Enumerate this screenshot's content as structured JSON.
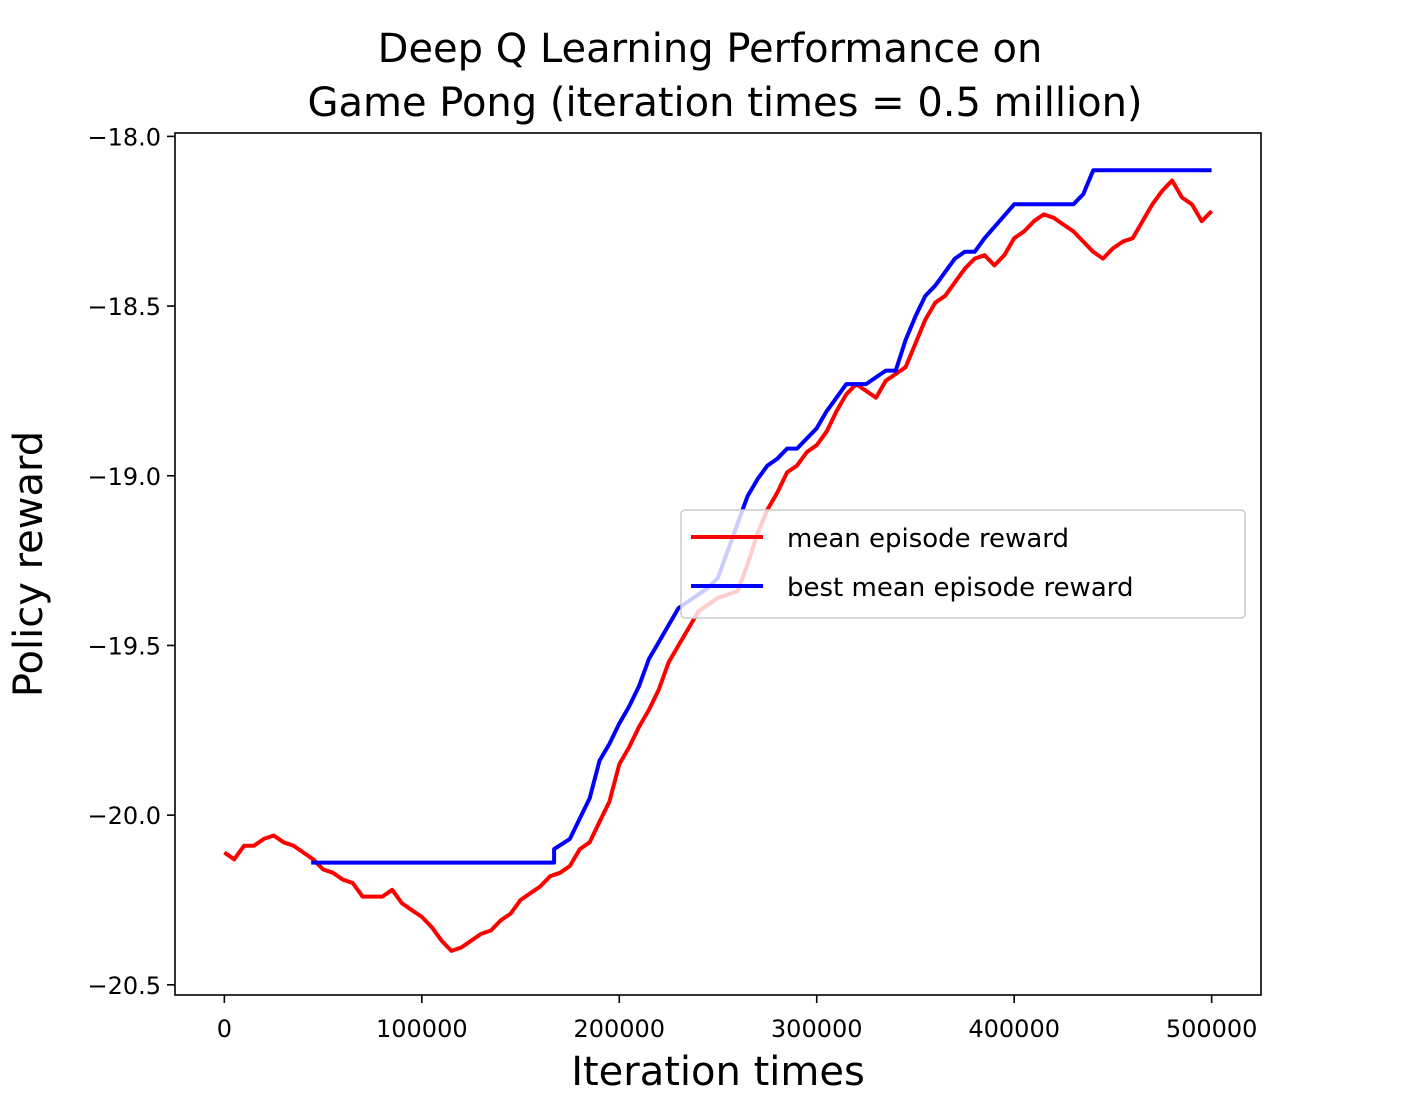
{
  "chart_data": {
    "type": "line",
    "title": "Deep Q Learning Performance on\nGame Pong (iteration times = 0.5 million)",
    "xlabel": "Iteration times",
    "ylabel": "Policy reward",
    "xlim": [
      -25000,
      525000
    ],
    "ylim": [
      -20.53,
      -17.99
    ],
    "xticks": [
      0,
      100000,
      200000,
      300000,
      400000,
      500000
    ],
    "xtick_labels": [
      "0",
      "100000",
      "200000",
      "300000",
      "400000",
      "500000"
    ],
    "yticks": [
      -18.0,
      -18.5,
      -19.0,
      -19.5,
      -20.0,
      -20.5
    ],
    "ytick_labels": [
      "−18.0",
      "−18.5",
      "−19.0",
      "−19.5",
      "−20.0",
      "−20.5"
    ],
    "grid": false,
    "legend_position": "center-right",
    "series": [
      {
        "name": "mean episode reward",
        "color": "#ff0000",
        "x": [
          0,
          5000,
          10000,
          15000,
          20000,
          25000,
          30000,
          35000,
          40000,
          45000,
          50000,
          55000,
          60000,
          65000,
          70000,
          75000,
          80000,
          85000,
          90000,
          95000,
          100000,
          105000,
          110000,
          115000,
          120000,
          125000,
          130000,
          135000,
          140000,
          145000,
          150000,
          155000,
          160000,
          165000,
          170000,
          175000,
          180000,
          185000,
          190000,
          195000,
          200000,
          205000,
          210000,
          215000,
          220000,
          225000,
          230000,
          235000,
          240000,
          245000,
          250000,
          255000,
          260000,
          265000,
          270000,
          275000,
          280000,
          285000,
          290000,
          295000,
          300000,
          305000,
          310000,
          315000,
          320000,
          325000,
          330000,
          335000,
          340000,
          345000,
          350000,
          355000,
          360000,
          365000,
          370000,
          375000,
          380000,
          385000,
          390000,
          395000,
          400000,
          405000,
          410000,
          415000,
          420000,
          425000,
          430000,
          435000,
          440000,
          445000,
          450000,
          455000,
          460000,
          465000,
          470000,
          475000,
          480000,
          485000,
          490000,
          495000,
          500000
        ],
        "values": [
          -20.11,
          -20.13,
          -20.09,
          -20.09,
          -20.07,
          -20.06,
          -20.08,
          -20.09,
          -20.11,
          -20.13,
          -20.16,
          -20.17,
          -20.19,
          -20.2,
          -20.24,
          -20.24,
          -20.24,
          -20.22,
          -20.26,
          -20.28,
          -20.3,
          -20.33,
          -20.37,
          -20.4,
          -20.39,
          -20.37,
          -20.35,
          -20.34,
          -20.31,
          -20.29,
          -20.25,
          -20.23,
          -20.21,
          -20.18,
          -20.17,
          -20.15,
          -20.1,
          -20.08,
          -20.02,
          -19.96,
          -19.85,
          -19.8,
          -19.74,
          -19.69,
          -19.63,
          -19.55,
          -19.5,
          -19.45,
          -19.4,
          -19.38,
          -19.36,
          -19.35,
          -19.34,
          -19.26,
          -19.17,
          -19.1,
          -19.05,
          -18.99,
          -18.97,
          -18.93,
          -18.91,
          -18.87,
          -18.81,
          -18.76,
          -18.73,
          -18.75,
          -18.77,
          -18.72,
          -18.7,
          -18.68,
          -18.61,
          -18.54,
          -18.49,
          -18.47,
          -18.43,
          -18.39,
          -18.36,
          -18.35,
          -18.38,
          -18.35,
          -18.3,
          -18.28,
          -18.25,
          -18.23,
          -18.24,
          -18.26,
          -18.28,
          -18.31,
          -18.34,
          -18.36,
          -18.33,
          -18.31,
          -18.3,
          -18.25,
          -18.2,
          -18.16,
          -18.13,
          -18.18,
          -18.2,
          -18.25,
          -18.22
        ]
      },
      {
        "name": "best mean episode reward",
        "color": "#0000ff",
        "x": [
          44000,
          167000,
          167000,
          175000,
          180000,
          185000,
          190000,
          195000,
          200000,
          205000,
          210000,
          215000,
          220000,
          225000,
          230000,
          235000,
          240000,
          245000,
          250000,
          255000,
          260000,
          265000,
          270000,
          275000,
          280000,
          285000,
          290000,
          295000,
          300000,
          305000,
          310000,
          315000,
          320000,
          325000,
          330000,
          335000,
          340000,
          345000,
          350000,
          355000,
          360000,
          365000,
          370000,
          375000,
          380000,
          385000,
          400000,
          410000,
          420000,
          425000,
          430000,
          435000,
          440000,
          445000,
          500000
        ],
        "values": [
          -20.14,
          -20.14,
          -20.1,
          -20.07,
          -20.01,
          -19.95,
          -19.84,
          -19.79,
          -19.73,
          -19.68,
          -19.62,
          -19.54,
          -19.49,
          -19.44,
          -19.39,
          -19.37,
          -19.35,
          -19.33,
          -19.3,
          -19.22,
          -19.14,
          -19.06,
          -19.01,
          -18.97,
          -18.95,
          -18.92,
          -18.92,
          -18.89,
          -18.86,
          -18.81,
          -18.77,
          -18.73,
          -18.73,
          -18.73,
          -18.71,
          -18.69,
          -18.69,
          -18.6,
          -18.53,
          -18.47,
          -18.44,
          -18.4,
          -18.36,
          -18.34,
          -18.34,
          -18.3,
          -18.2,
          -18.2,
          -18.2,
          -18.2,
          -18.2,
          -18.17,
          -18.1,
          -18.1,
          -18.1
        ]
      }
    ]
  }
}
